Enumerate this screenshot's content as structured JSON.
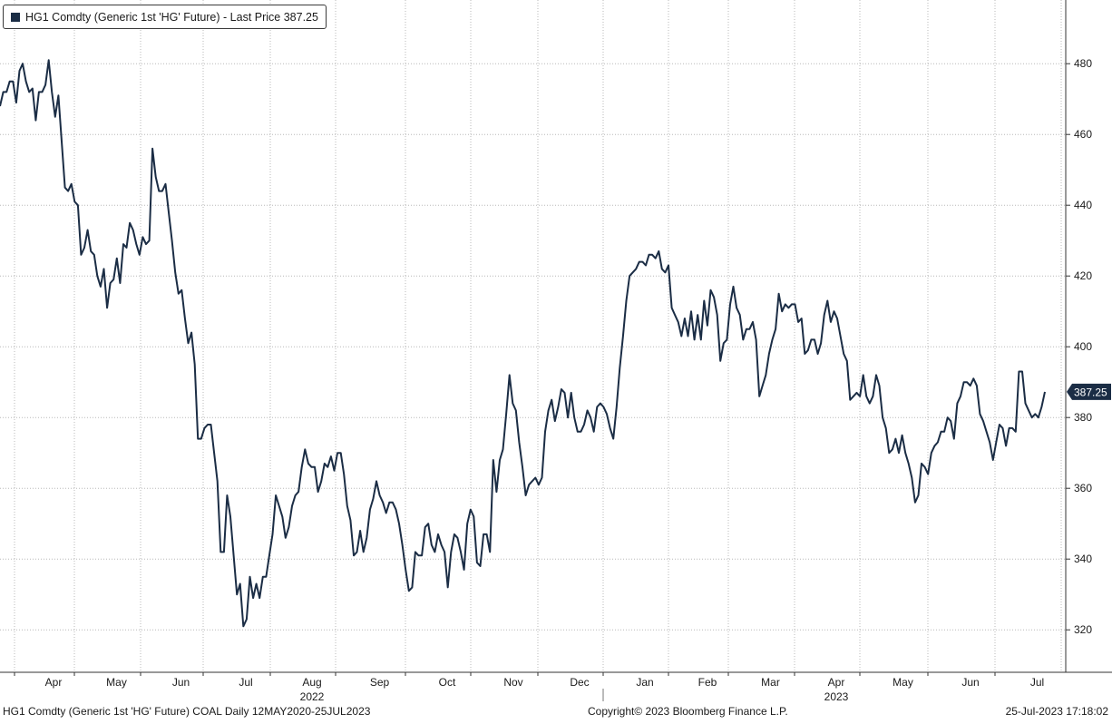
{
  "colors": {
    "line": "#1b2d45",
    "grid": "#b8b8b8",
    "badge": "#1b2d45",
    "badge_text": "#ffffff",
    "background": "#ffffff"
  },
  "legend": {
    "label": "HG1 Comdty (Generic 1st 'HG' Future) - Last Price 387.25"
  },
  "footer": {
    "left": "HG1 Comdty (Generic 1st 'HG' Future) COAL  Daily 12MAY2020-25JUL2023",
    "center": "Copyright© 2023 Bloomberg Finance L.P.",
    "right": "25-Jul-2023 17:18:02"
  },
  "chart_data": {
    "type": "line",
    "title": "",
    "xlabel": "",
    "ylabel": "",
    "ylim": [
      308,
      498
    ],
    "y_ticks": [
      320,
      340,
      360,
      380,
      400,
      420,
      440,
      460,
      480
    ],
    "grid": true,
    "legend_position": "top-left",
    "last_price_label": "387.25",
    "month_labels": [
      "Apr",
      "May",
      "Jun",
      "Jul",
      "Aug",
      "Sep",
      "Oct",
      "Nov",
      "Dec",
      "Jan",
      "Feb",
      "Mar",
      "Apr",
      "May",
      "Jun",
      "Jul"
    ],
    "year_labels": [
      {
        "label": "2022",
        "under_month_index": 4
      },
      {
        "label": "2023",
        "under_month_index": 12
      }
    ],
    "series": [
      {
        "values": [
          468,
          472,
          472,
          475,
          475,
          469,
          478,
          480,
          475,
          472,
          473,
          464,
          472,
          472,
          474,
          481,
          472,
          465,
          471,
          458,
          445,
          444,
          446,
          441,
          440,
          426,
          428,
          433,
          427,
          426,
          420,
          417,
          422,
          411,
          418,
          419,
          425,
          418,
          429,
          428,
          435,
          433,
          429,
          426,
          431,
          429,
          430,
          456,
          448,
          444,
          444,
          446,
          438,
          430,
          421,
          415,
          416,
          408,
          401,
          404,
          395,
          374,
          374,
          377,
          378,
          378,
          370,
          362,
          342,
          342,
          358,
          352,
          341,
          330,
          333,
          321,
          323,
          335,
          329,
          333,
          329,
          335,
          335,
          341,
          347,
          358,
          355,
          352,
          346,
          349,
          355,
          358,
          359,
          366,
          371,
          367,
          366,
          366,
          359,
          362,
          367,
          366,
          369,
          365,
          370,
          370,
          364,
          355,
          351,
          341,
          342,
          348,
          342,
          346,
          354,
          357,
          362,
          358,
          356,
          353,
          356,
          356,
          354,
          350,
          344,
          337,
          331,
          332,
          342,
          341,
          341,
          349,
          350,
          344,
          342,
          347,
          344,
          342,
          332,
          342,
          347,
          346,
          342,
          337,
          350,
          354,
          352,
          339,
          338,
          347,
          347,
          342,
          368,
          359,
          368,
          371,
          381,
          392,
          384,
          382,
          373,
          366,
          358,
          361,
          362,
          363,
          361,
          363,
          376,
          382,
          385,
          379,
          383,
          388,
          387,
          380,
          387,
          380,
          376,
          376,
          378,
          382,
          380,
          376,
          383,
          384,
          383,
          381,
          377,
          374,
          383,
          394,
          403,
          413,
          420,
          421,
          422,
          424,
          424,
          423,
          426,
          426,
          425,
          427,
          422,
          421,
          423,
          411,
          409,
          407,
          403,
          408,
          403,
          410,
          402,
          409,
          402,
          413,
          406,
          416,
          414,
          409,
          396,
          401,
          402,
          412,
          417,
          411,
          409,
          402,
          405,
          405,
          407,
          402,
          386,
          389,
          392,
          398,
          402,
          405,
          415,
          410,
          412,
          411,
          412,
          412,
          407,
          408,
          398,
          399,
          402,
          402,
          398,
          401,
          409,
          413,
          407,
          410,
          408,
          403,
          398,
          396,
          385,
          386,
          387,
          386,
          392,
          386,
          384,
          386,
          392,
          389,
          380,
          377,
          370,
          371,
          374,
          370,
          375,
          370,
          367,
          363,
          356,
          358,
          367,
          366,
          364,
          370,
          372,
          373,
          376,
          376,
          380,
          379,
          374,
          384,
          386,
          390,
          390,
          389,
          391,
          389,
          381,
          379,
          376,
          373,
          368,
          373,
          378,
          377,
          372,
          377,
          377,
          376,
          393,
          393,
          384,
          382,
          380,
          381,
          380,
          383,
          387.25
        ]
      }
    ]
  }
}
